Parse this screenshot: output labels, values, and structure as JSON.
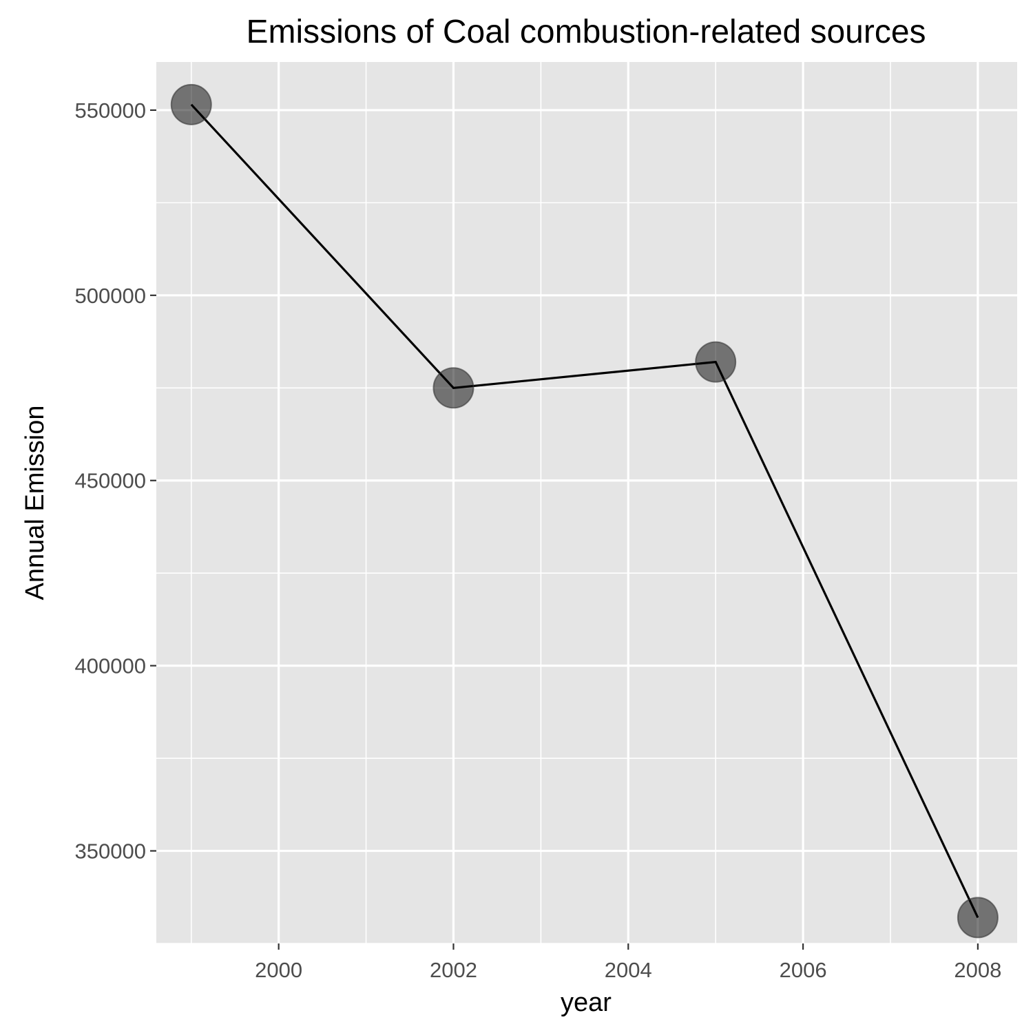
{
  "chart_data": {
    "type": "line",
    "title": "Emissions of Coal combustion-related sources",
    "xlabel": "year",
    "ylabel": "Annual Emission",
    "x": [
      1999,
      2002,
      2005,
      2008
    ],
    "series": [
      {
        "values": [
          551500,
          475000,
          482000,
          332000
        ]
      }
    ],
    "xlim": [
      1998.6,
      2008.45
    ],
    "ylim": [
      325000,
      563000
    ],
    "x_ticks": [
      2000,
      2002,
      2004,
      2006,
      2008
    ],
    "x_tick_labels": [
      "2000",
      "2002",
      "2004",
      "2006",
      "2008"
    ],
    "y_ticks": [
      350000,
      400000,
      450000,
      500000,
      550000
    ],
    "y_tick_labels": [
      "350000",
      "400000",
      "450000",
      "500000",
      "550000"
    ],
    "grid": true,
    "legend": "none",
    "colors": {
      "panel": "#e5e5e5",
      "grid": "#ffffff",
      "line": "#000000",
      "point": "#000000"
    }
  }
}
